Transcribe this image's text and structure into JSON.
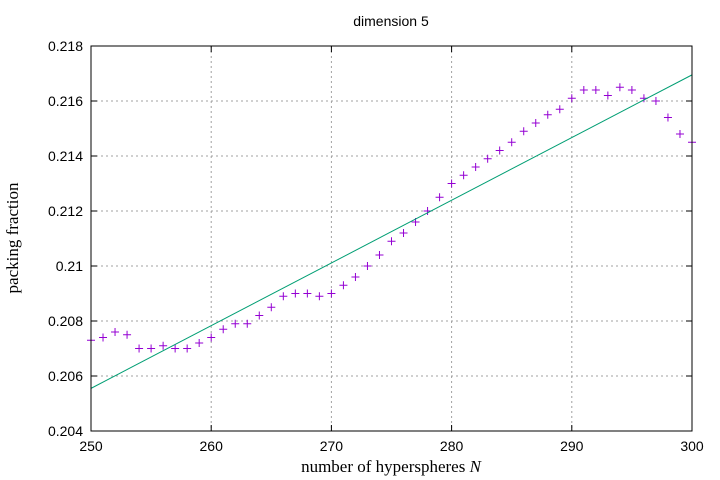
{
  "chart_data": {
    "type": "scatter",
    "title": "dimension 5",
    "xlabel_text": "number of hyperspheres ",
    "xlabel_var": "N",
    "ylabel": "packing fraction",
    "xlim": [
      250,
      300
    ],
    "ylim": [
      0.204,
      0.218
    ],
    "x_ticks": [
      250,
      260,
      270,
      280,
      290,
      300
    ],
    "x_tick_labels": [
      "250",
      "260",
      "270",
      "280",
      "290",
      "300"
    ],
    "y_ticks": [
      0.204,
      0.206,
      0.208,
      0.21,
      0.212,
      0.214,
      0.216,
      0.218
    ],
    "y_tick_labels": [
      "0.204",
      "0.206",
      "0.208",
      "0.21",
      "0.212",
      "0.214",
      "0.216",
      "0.218"
    ],
    "grid": true,
    "series": [
      {
        "type": "scatter",
        "marker": "plus",
        "color": "#9400d3",
        "x": [
          250,
          251,
          252,
          253,
          254,
          255,
          256,
          257,
          258,
          259,
          260,
          261,
          262,
          263,
          264,
          265,
          266,
          267,
          268,
          269,
          270,
          271,
          272,
          273,
          274,
          275,
          276,
          277,
          278,
          279,
          280,
          281,
          282,
          283,
          284,
          285,
          286,
          287,
          288,
          289,
          290,
          291,
          292,
          293,
          294,
          295,
          296,
          297,
          298,
          299,
          300
        ],
        "y": [
          0.2073,
          0.2074,
          0.2076,
          0.2075,
          0.207,
          0.207,
          0.2071,
          0.207,
          0.207,
          0.2072,
          0.2074,
          0.2077,
          0.2079,
          0.2079,
          0.2082,
          0.2085,
          0.2089,
          0.209,
          0.209,
          0.2089,
          0.209,
          0.2093,
          0.2096,
          0.21,
          0.2104,
          0.2109,
          0.2112,
          0.2116,
          0.212,
          0.2125,
          0.213,
          0.2133,
          0.2136,
          0.2139,
          0.2142,
          0.2145,
          0.2149,
          0.2152,
          0.2155,
          0.2157,
          0.2161,
          0.2164,
          0.2164,
          0.2162,
          0.2165,
          0.2164,
          0.2161,
          0.216,
          0.2154,
          0.2148,
          0.2145
        ]
      },
      {
        "type": "line",
        "color": "#009e73",
        "x": [
          250,
          300
        ],
        "y": [
          0.20555,
          0.21695
        ]
      }
    ]
  }
}
